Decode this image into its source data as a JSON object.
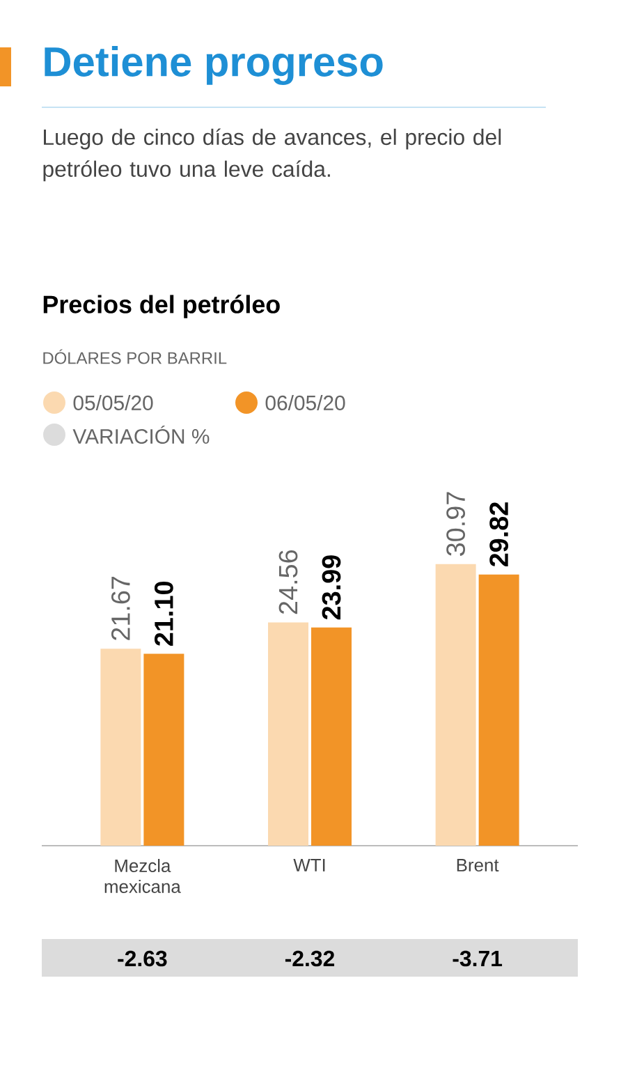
{
  "chart_data": {
    "type": "bar",
    "title": "Detiene progreso",
    "subtitle": "Luego de cinco días de avances, el precio del petróleo tuvo una leve caída.",
    "categories": [
      "Mezcla mexicana",
      "WTI",
      "Brent"
    ],
    "series": [
      {
        "name": "05/05/20",
        "color": "#fbd9b0",
        "values": [
          21.67,
          24.56,
          30.97
        ],
        "value_labels": [
          "21.67",
          "24.56",
          "30.97"
        ]
      },
      {
        "name": "06/05/20",
        "color": "#f29427",
        "values": [
          21.1,
          23.99,
          29.82
        ],
        "value_labels": [
          "21.10",
          "23.99",
          "29.82"
        ]
      }
    ],
    "legend": "top left",
    "annotations": [
      "Precios del petróleo",
      "DÓLARES POR BARRIL",
      "VARIACIÓN %",
      "-2.63",
      "-2.32",
      "-3.71"
    ]
  }
}
